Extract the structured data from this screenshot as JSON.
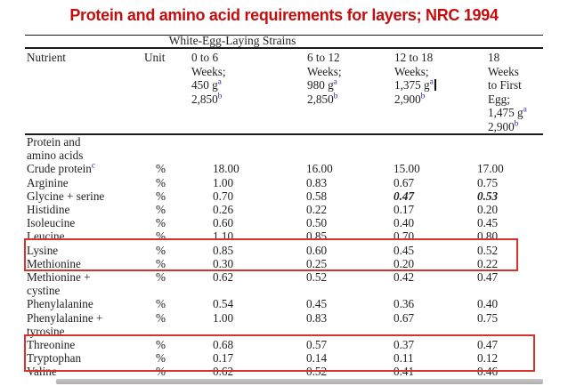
{
  "title": "Protein and amino acid requirements for layers; NRC 1994",
  "colors": {
    "title_red": "#c60d0d",
    "highlight_box_red": "#d6342a",
    "superscript_blue": "#2d2dbe",
    "text": "#1f1f1f"
  },
  "table": {
    "spanner": "White-Egg-Laying Strains",
    "columns": {
      "nutrient": "Nutrient",
      "unit": "Unit",
      "age_groups": [
        {
          "lines": [
            "0 to 6",
            "Weeks;"
          ],
          "weight": "450 g",
          "weight_sup": "a",
          "energy": "2,850",
          "energy_sup": "b",
          "cursor": false
        },
        {
          "lines": [
            "6 to 12",
            "Weeks;"
          ],
          "weight": "980 g",
          "weight_sup": "a",
          "energy": "2,850",
          "energy_sup": "b",
          "cursor": false
        },
        {
          "lines": [
            "12 to 18",
            "Weeks;"
          ],
          "weight": "1,375 g",
          "weight_sup": "a",
          "energy": "2,900",
          "energy_sup": "b",
          "cursor": true
        },
        {
          "lines": [
            "18",
            "Weeks",
            "to First",
            "Egg;"
          ],
          "weight": "1,475 g",
          "weight_sup": "a",
          "energy": "2,900",
          "energy_sup": "b",
          "cursor": false
        }
      ]
    },
    "rows": [
      {
        "name": "Protein and",
        "name2": "amino acids",
        "unit": "",
        "values": []
      },
      {
        "name": "Crude protein",
        "name_sup": "c",
        "unit": "%",
        "values": [
          "18.00",
          "16.00",
          "15.00",
          "17.00"
        ]
      },
      {
        "name": "Arginine",
        "unit": "%",
        "values": [
          "1.00",
          "0.83",
          "0.67",
          "0.75"
        ]
      },
      {
        "name": "Glycine + serine",
        "unit": "%",
        "values": [
          "0.70",
          "0.58",
          "0.47",
          "0.53"
        ],
        "emphasis": [
          2,
          3
        ]
      },
      {
        "name": "Histidine",
        "unit": "%",
        "values": [
          "0.26",
          "0.22",
          "0.17",
          "0.20"
        ]
      },
      {
        "name": "Isoleucine",
        "unit": "%",
        "values": [
          "0.60",
          "0.50",
          "0.40",
          "0.45"
        ]
      },
      {
        "name": "Leucine",
        "unit": "%",
        "values": [
          "1.10",
          "0.85",
          "0.70",
          "0.80"
        ]
      },
      {
        "name": "Lysine",
        "unit": "%",
        "values": [
          "0.85",
          "0.60",
          "0.45",
          "0.52"
        ],
        "highlight": 1
      },
      {
        "name": "Methionine",
        "unit": "%",
        "values": [
          "0.30",
          "0.25",
          "0.20",
          "0.22"
        ],
        "highlight": 1
      },
      {
        "name": "Methionine +",
        "name2": "cystine",
        "unit": "%",
        "values": [
          "0.62",
          "0.52",
          "0.42",
          "0.47"
        ]
      },
      {
        "name": "Phenylalanine",
        "unit": "%",
        "values": [
          "0.54",
          "0.45",
          "0.36",
          "0.40"
        ]
      },
      {
        "name": "Phenylalanine +",
        "name2": "tyrosine",
        "unit": "%",
        "values": [
          "1.00",
          "0.83",
          "0.67",
          "0.75"
        ]
      },
      {
        "name": "Threonine",
        "unit": "%",
        "values": [
          "0.68",
          "0.57",
          "0.37",
          "0.47"
        ],
        "highlight": 2
      },
      {
        "name": "Tryptophan",
        "unit": "%",
        "values": [
          "0.17",
          "0.14",
          "0.11",
          "0.12"
        ],
        "highlight": 2
      },
      {
        "name": "Valine",
        "unit": "%",
        "values": [
          "0.62",
          "0.52",
          "0.41",
          "0.46"
        ]
      }
    ]
  }
}
